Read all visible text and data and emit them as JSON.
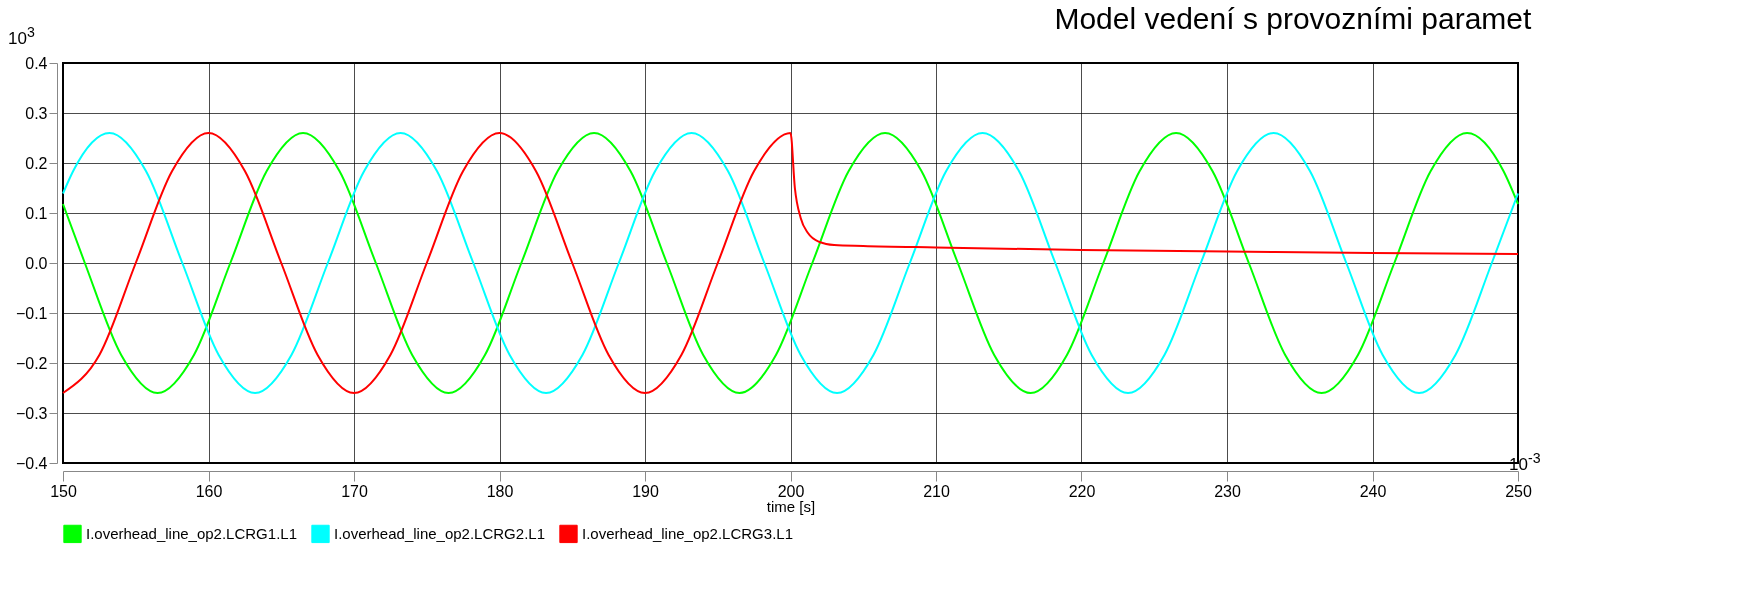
{
  "chart_data": {
    "type": "line",
    "title": "Model vedení s provozními paramet",
    "xlabel": "time [s]",
    "annotations": [
      "10$^{3}$",
      "10$^{-3}$"
    ],
    "xlim": [
      150,
      250
    ],
    "xticks": [
      150,
      160,
      170,
      180,
      190,
      200,
      210,
      220,
      230,
      240,
      250
    ],
    "ylim": [
      -0.4,
      0.4
    ],
    "yticks": [
      -0.4,
      -0.3,
      -0.2,
      -0.1,
      {
        "value": 0,
        "label": "0.0"
      },
      0.1,
      0.2,
      0.3,
      0.4
    ],
    "grid": true,
    "legend": "bottom left",
    "series": [
      {
        "name": "I.overhead_line_op2.LCRG1.L1",
        "color": "#00ff00",
        "x": [
          150,
          151.5,
          154,
          156.5,
          159,
          161.5,
          164,
          166.5,
          169,
          171.5,
          174,
          176.5,
          179,
          181.5,
          184,
          186.5,
          189,
          191.5,
          194,
          196.5,
          199,
          201.5,
          204,
          206.5,
          209,
          211.5,
          214,
          216.5,
          219,
          221.5,
          224,
          226.5,
          229,
          231.5,
          234,
          236.5,
          239,
          241.5,
          244,
          246.5,
          249,
          250
        ],
        "values": [
          0.118,
          0,
          -0.184,
          -0.26,
          -0.184,
          0,
          0.184,
          0.26,
          0.184,
          0,
          -0.184,
          -0.26,
          -0.184,
          0,
          0.184,
          0.26,
          0.184,
          0,
          -0.184,
          -0.26,
          -0.184,
          0,
          0.184,
          0.26,
          0.184,
          0,
          -0.184,
          -0.26,
          -0.184,
          0,
          0.184,
          0.26,
          0.184,
          0,
          -0.184,
          -0.26,
          -0.184,
          0,
          0.184,
          0.26,
          0.184,
          0.118
        ]
      },
      {
        "name": "I.overhead_line_op2.LCRG2.L1",
        "color": "#00ffff",
        "x": [
          150,
          150.7,
          153.2,
          155.7,
          158.2,
          160.7,
          163.2,
          165.7,
          168.2,
          170.7,
          173.2,
          175.7,
          178.2,
          180.7,
          183.2,
          185.7,
          188.2,
          190.7,
          193.2,
          195.7,
          198.2,
          200.7,
          203.2,
          205.7,
          208.2,
          210.7,
          213.2,
          215.7,
          218.2,
          220.7,
          223.2,
          225.7,
          228.2,
          230.7,
          233.2,
          235.7,
          238.2,
          240.7,
          243.2,
          245.7,
          248.2,
          250
        ],
        "values": [
          0.139,
          0.184,
          0.26,
          0.184,
          0,
          -0.184,
          -0.26,
          -0.184,
          0,
          0.184,
          0.26,
          0.184,
          0,
          -0.184,
          -0.26,
          -0.184,
          0,
          0.184,
          0.26,
          0.184,
          0,
          -0.184,
          -0.26,
          -0.184,
          0,
          0.184,
          0.26,
          0.184,
          0,
          -0.184,
          -0.26,
          -0.184,
          0,
          0.184,
          0.26,
          0.184,
          0,
          -0.184,
          -0.26,
          -0.184,
          0,
          0.139
        ]
      },
      {
        "name": "I.overhead_line_op2.LCRG3.L1",
        "color": "#ff0000",
        "x": [
          150,
          152.5,
          155,
          157.5,
          160,
          162.5,
          165,
          167.5,
          170,
          172.5,
          175,
          177.5,
          180,
          182.5,
          185,
          187.5,
          190,
          192.5,
          195,
          197.5,
          200,
          200.3,
          200.7,
          201.2,
          202,
          203,
          205,
          210,
          220,
          230,
          240,
          250
        ],
        "values": [
          -0.26,
          -0.184,
          0,
          0.184,
          0.26,
          0.184,
          0,
          -0.184,
          -0.26,
          -0.184,
          0,
          0.184,
          0.26,
          0.184,
          0,
          -0.184,
          -0.26,
          -0.184,
          0,
          0.184,
          0.26,
          0.15,
          0.09,
          0.06,
          0.042,
          0.036,
          0.034,
          0.031,
          0.026,
          0.023,
          0.02,
          0.018
        ]
      }
    ]
  }
}
